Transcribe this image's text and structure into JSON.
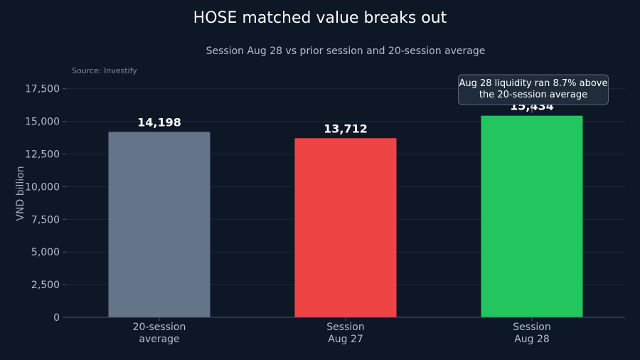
{
  "chart_data": {
    "type": "bar",
    "title": "HOSE matched value breaks out",
    "subtitle": "Session Aug 28 vs prior session and 20-session average",
    "source": "Source: Investify",
    "ylabel": "VND billion",
    "xlabel": "",
    "ylim": [
      0,
      19500
    ],
    "yticks": [
      0,
      2500,
      5000,
      7500,
      10000,
      12500,
      15000,
      17500
    ],
    "ytick_labels": [
      "0",
      "2,500",
      "5,000",
      "7,500",
      "10,000",
      "12,500",
      "15,000",
      "17,500"
    ],
    "grid": true,
    "categories": [
      [
        "20-session",
        "average"
      ],
      [
        "Session",
        "Aug 27"
      ],
      [
        "Session",
        "Aug 28"
      ]
    ],
    "values": [
      14198,
      13712,
      15434
    ],
    "value_labels": [
      "14,198",
      "13,712",
      "15,434"
    ],
    "colors": [
      "#64748b",
      "#ef4444",
      "#22c55e"
    ],
    "annotation": {
      "lines": [
        "Aug 28 liquidity ran 8.7% above",
        "the 20-session average"
      ],
      "target_index": 2
    }
  }
}
